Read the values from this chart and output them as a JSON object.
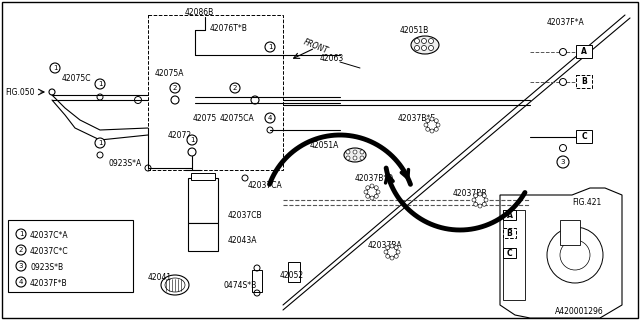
{
  "bg_color": "#ffffff",
  "diagram_id": "A420001296",
  "legend": [
    {
      "num": "1",
      "code": "42037C*A"
    },
    {
      "num": "2",
      "code": "42037C*C"
    },
    {
      "num": "3",
      "code": "0923S*B"
    },
    {
      "num": "4",
      "code": "42037F*B"
    }
  ],
  "fs": 6.0,
  "sfs": 5.5
}
